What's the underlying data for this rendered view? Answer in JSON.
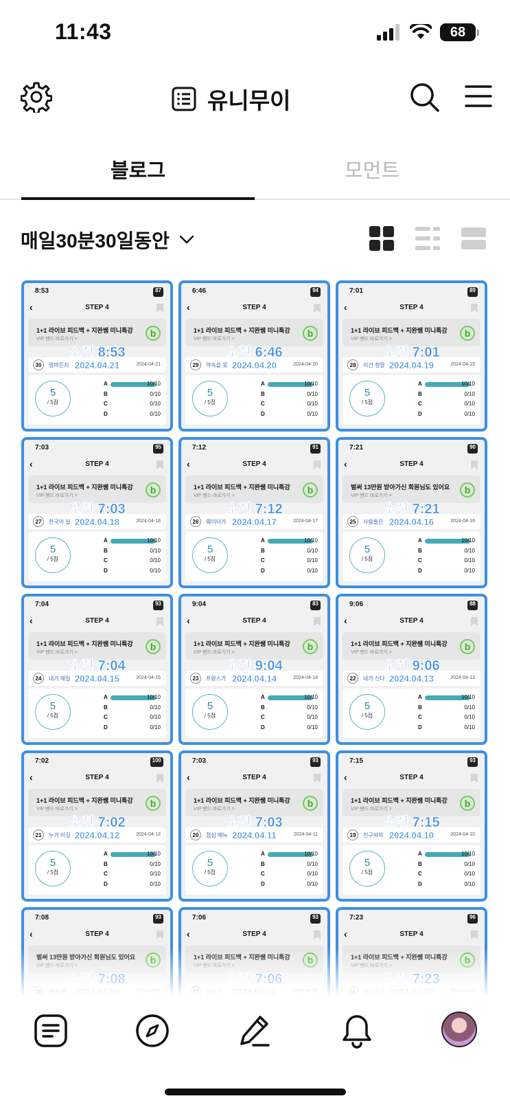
{
  "status_bar": {
    "time": "11:43",
    "battery": "68"
  },
  "header": {
    "title": "유니무이"
  },
  "tabs": [
    {
      "label": "블로그",
      "active": true
    },
    {
      "label": "모먼트",
      "active": false
    }
  ],
  "filter": {
    "category": "매일30분30일동안"
  },
  "tiles": [
    {
      "phone_time": "8:53",
      "battery": "87",
      "banner": "1+1 라이브 피드백 + 지완쌤 미니특강",
      "banner_sub": "VIP 밴드 바로가기 >",
      "overlay_time": "오전 8:53",
      "overlay_date": "2024.04.21",
      "num": "30",
      "snippet": "얼마든지",
      "date_small": "2024-04-21",
      "score": "5",
      "score_sub": "/ 5점"
    },
    {
      "phone_time": "6:46",
      "battery": "94",
      "banner": "1+1 라이브 피드백 + 지완쌤 미니특강",
      "banner_sub": "VIP 밴드 바로가기 >",
      "overlay_time": "오전 6:46",
      "overlay_date": "2024.04.20",
      "num": "29",
      "snippet": "약속을 못",
      "date_small": "2024-04-20",
      "score": "5",
      "score_sub": "/ 5점"
    },
    {
      "phone_time": "7:01",
      "battery": "89",
      "banner": "1+1 라이브 피드백 + 지완쌤 미니특강",
      "banner_sub": "VIP 밴드 바로가기 >",
      "overlay_time": "오전 7:01",
      "overlay_date": "2024.04.19",
      "num": "28",
      "snippet": "이건 정말",
      "date_small": "2024-04-19",
      "score": "5",
      "score_sub": "/ 5점"
    },
    {
      "phone_time": "7:03",
      "battery": "95",
      "banner": "1+1 라이브 피드백 + 지완쌤 미니특강",
      "banner_sub": "VIP 밴드 바로가기 >",
      "overlay_time": "오전 7:03",
      "overlay_date": "2024.04.18",
      "num": "27",
      "snippet": "한국어 실",
      "date_small": "2024-04-18",
      "score": "5",
      "score_sub": "/ 5점"
    },
    {
      "phone_time": "7:12",
      "battery": "91",
      "banner": "1+1 라이브 피드백 + 지완쌤 미니특강",
      "banner_sub": "VIP 밴드 바로가기 >",
      "overlay_time": "오전 7:12",
      "overlay_date": "2024.04.17",
      "num": "26",
      "snippet": "웨이터가",
      "date_small": "2024-04-17",
      "score": "5",
      "score_sub": "/ 5점"
    },
    {
      "phone_time": "7:21",
      "battery": "90",
      "banner": "벌써 13만원 받아가신 회원님도 있어요",
      "banner_sub": "VIP 밴드 바로가기 >",
      "overlay_time": "오전 7:21",
      "overlay_date": "2024.04.16",
      "num": "25",
      "snippet": "사람들은",
      "date_small": "2024-04-16",
      "score": "5",
      "score_sub": "/ 5점"
    },
    {
      "phone_time": "7:04",
      "battery": "93",
      "banner": "1+1 라이브 피드백 + 지완쌤 미니특강",
      "banner_sub": "VIP 밴드 바로가기 >",
      "overlay_time": "오전 7:04",
      "overlay_date": "2024.04.15",
      "num": "24",
      "snippet": "내가 제일",
      "date_small": "2024-04-15",
      "score": "5",
      "score_sub": "/ 5점"
    },
    {
      "phone_time": "9:04",
      "battery": "83",
      "banner": "1+1 라이브 피드백 + 지완쌤 미니특강",
      "banner_sub": "VIP 밴드 바로가기 >",
      "overlay_time": "오전 9:04",
      "overlay_date": "2024.04.14",
      "num": "23",
      "snippet": "프랑스가",
      "date_small": "2024-04-14",
      "score": "5",
      "score_sub": "/ 5점"
    },
    {
      "phone_time": "9:06",
      "battery": "88",
      "banner": "1+1 라이브 피드백 + 지완쌤 미니특강",
      "banner_sub": "VIP 밴드 바로가기 >",
      "overlay_time": "오전 9:06",
      "overlay_date": "2024.04.13",
      "num": "22",
      "snippet": "네가 신다",
      "date_small": "2024-04-13",
      "score": "5",
      "score_sub": "/ 5점"
    },
    {
      "phone_time": "7:02",
      "battery": "100",
      "banner": "1+1 라이브 피드백 + 지완쌤 미니특강",
      "banner_sub": "VIP 밴드 바로가기 >",
      "overlay_time": "오전 7:02",
      "overlay_date": "2024.04.12",
      "num": "21",
      "snippet": "누가 이길",
      "date_small": "2024-04-12",
      "score": "5",
      "score_sub": "/ 5점"
    },
    {
      "phone_time": "7:03",
      "battery": "93",
      "banner": "1+1 라이브 피드백 + 지완쌤 미니특강",
      "banner_sub": "VIP 밴드 바로가기 >",
      "overlay_time": "오전 7:03",
      "overlay_date": "2024.04.11",
      "num": "20",
      "snippet": "점심 메뉴",
      "date_small": "2024-04-11",
      "score": "5",
      "score_sub": "/ 5점"
    },
    {
      "phone_time": "7:15",
      "battery": "93",
      "banner": "1+1 라이브 피드백 + 지완쌤 미니특강",
      "banner_sub": "VIP 밴드 바로가기 >",
      "overlay_time": "오전 7:15",
      "overlay_date": "2024.04.10",
      "num": "19",
      "snippet": "친구와의",
      "date_small": "2024-04-10",
      "score": "5",
      "score_sub": "/ 5점"
    },
    {
      "phone_time": "7:08",
      "battery": "93",
      "banner": "벌써 13만원 받아가신 회원님도 있어요",
      "banner_sub": "VIP 밴드 바로가기 >",
      "overlay_time": "오전 7:08",
      "overlay_date": "2024.04.09",
      "num": "18",
      "snippet": "결우 때",
      "date_small": "2024-04-09",
      "score": "5",
      "score_sub": "/ 5점"
    },
    {
      "phone_time": "7:06",
      "battery": "93",
      "banner": "1+1 라이브 피드백 + 지완쌤 미니특강",
      "banner_sub": "VIP 밴드 바로가기 >",
      "overlay_time": "오전 7:06",
      "overlay_date": "2024.04.08",
      "num": "17",
      "snippet": "늦어고",
      "date_small": "2024-04-08",
      "score": "5",
      "score_sub": "/ 5점"
    },
    {
      "phone_time": "7:23",
      "battery": "96",
      "banner": "1+1 라이브 피드백 + 지완쌤 미니특강",
      "banner_sub": "VIP 밴드 바로가기 >",
      "overlay_time": "오전 7:23",
      "overlay_date": "2024.04.07",
      "num": "16",
      "snippet": "얘기 말고",
      "date_small": "2024-04-07",
      "score": "5",
      "score_sub": "/ 5점"
    }
  ],
  "tile_common": {
    "step": "STEP 4",
    "grades": [
      {
        "label": "A",
        "value": "10/10",
        "fill": 1
      },
      {
        "label": "B",
        "value": "0/10",
        "fill": 0
      },
      {
        "label": "C",
        "value": "0/10",
        "fill": 0
      },
      {
        "label": "D",
        "value": "0/10",
        "fill": 0
      }
    ]
  },
  "colors": {
    "accent_blue": "#3d8fe4",
    "bar_teal": "#46a9b8"
  },
  "icons": {
    "header": [
      "settings-gear-icon",
      "list-icon",
      "search-icon",
      "hamburger-menu-icon"
    ],
    "view_modes": [
      "grid-view-icon",
      "two-line-list-view-icon",
      "single-list-view-icon"
    ],
    "bottom_nav": [
      "feed-icon",
      "compass-icon",
      "pencil-write-icon",
      "bell-icon",
      "profile-avatar"
    ]
  }
}
